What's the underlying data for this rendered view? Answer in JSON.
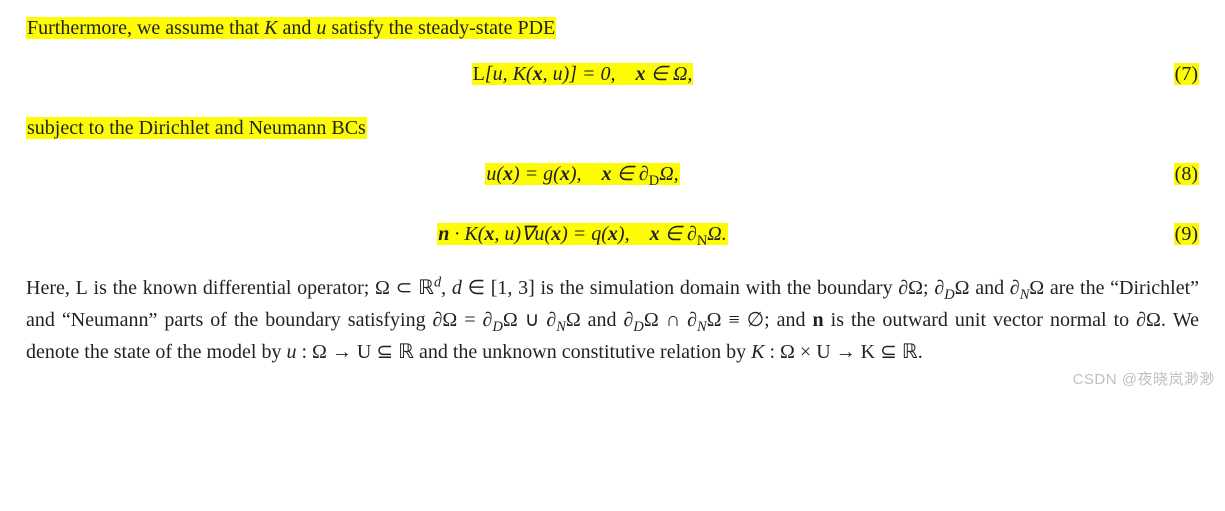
{
  "highlight_color": "#fdfc04",
  "background_color": "#ffffff",
  "text_color": "#222222",
  "font_family_body": "Georgia, 'Times New Roman', serif",
  "font_size_pt": 15,
  "line1_text": "Furthermore, we assume that K and u satisfy the steady-state PDE",
  "line1_html": "Furthermore, we assume that <span class='it'>K</span> and <span class='it'>u</span> satisfy the steady-state PDE",
  "eq7_html": "<span class='cal'>L</span>[<span class='it'>u</span>, <span class='it'>K</span>(<span class='bf'>x</span>, <span class='it'>u</span>)] = 0,&nbsp;&nbsp;&nbsp;&nbsp;<span class='bf'>x</span> &isin; &Omega;,",
  "eq7_num": "(7)",
  "line2_text": "subject to the Dirichlet and Neumann BCs",
  "eq8_html": "<span class='it'>u</span>(<span class='bf'>x</span>) = <span class='it'>g</span>(<span class='bf'>x</span>),&nbsp;&nbsp;&nbsp;&nbsp;<span class='bf'>x</span> &isin; &part;<sub><span class='it rm'>D</span></sub>&Omega;,",
  "eq8_num": "(8)",
  "eq9_html": "<span class='bf'>n</span> &middot; <span class='it'>K</span>(<span class='bf'>x</span>, <span class='it'>u</span>)&nabla;<span class='it'>u</span>(<span class='bf'>x</span>) = <span class='it'>q</span>(<span class='bf'>x</span>),&nbsp;&nbsp;&nbsp;&nbsp;<span class='bf'>x</span> &isin; &part;<sub><span class='it rm'>N</span></sub>&Omega;.",
  "eq9_num": "(9)",
  "para_html": "Here, <span class='cal'>L</span> is the known differential operator; &Omega; &sub; <span class='bb'>&#8477;</span><sup><span class='it'>d</span></sup>, <span class='it'>d</span> &isin; [1, 3] is the simulation domain with the boundary &part;&Omega;; &part;<sub><span class='it'>D</span></sub>&Omega; and &part;<sub><span class='it'>N</span></sub>&Omega; are the &ldquo;Dirichlet&rdquo; and &ldquo;Neumann&rdquo; parts of the boundary satisfying &part;&Omega; = &part;<sub><span class='it'>D</span></sub>&Omega; &cup; &part;<sub><span class='it'>N</span></sub>&Omega; and &part;<sub><span class='it'>D</span></sub>&Omega; &cap; &part;<sub><span class='it'>N</span></sub>&Omega; &equiv; &empty;; and <span class='bf'>n</span> is the outward unit vector normal to &part;&Omega;. We denote the state of the model by <span class='it'>u</span> : &Omega; &rarr; <span class='cal'>U</span> &sube; <span class='bb'>&#8477;</span> and the unknown constitutive relation by <span class='it'>K</span> : &Omega; &times; <span class='cal'>U</span> &rarr; <span class='cal'>K</span> &sube; <span class='bb'>&#8477;</span>.",
  "watermark_text": "CSDN @夜晓岚渺渺"
}
